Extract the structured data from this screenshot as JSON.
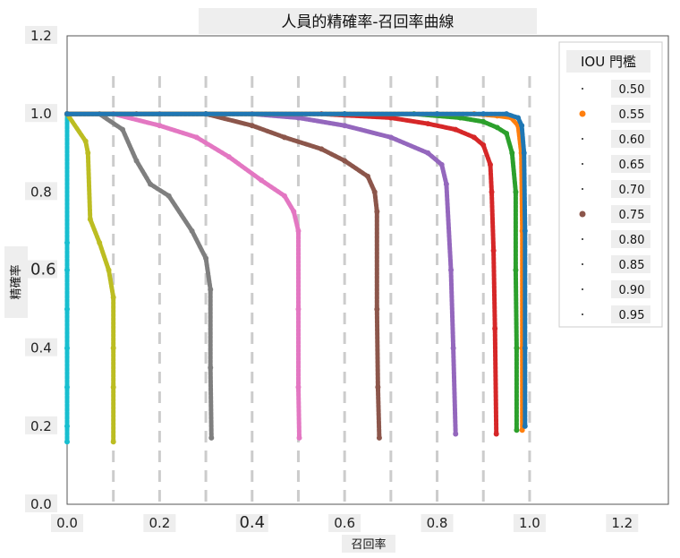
{
  "chart_data": {
    "type": "scatter",
    "title": "人員的精確率-召回率曲線",
    "xlabel": "召回率",
    "ylabel": "精確率",
    "xlim": [
      0.0,
      1.3
    ],
    "ylim": [
      0.0,
      1.2
    ],
    "x_ticks": [
      "0.0",
      "0.2",
      "0.4",
      "0.6",
      "0.8",
      "1.0",
      "1.2"
    ],
    "y_ticks": [
      "0.0",
      "0.2",
      "0.4",
      "0.6",
      "0.8",
      "1.0",
      "1.2"
    ],
    "grid": "vertical dashed lines at every 0.1 of recall",
    "legend": {
      "title": "IOU 門檻",
      "placement": "top-right"
    },
    "series": [
      {
        "name": "0.50",
        "color": "#1f77b4",
        "points": [
          [
            0.0,
            1.0
          ],
          [
            0.3,
            1.0
          ],
          [
            0.6,
            1.0
          ],
          [
            0.8,
            1.0
          ],
          [
            0.9,
            1.0
          ],
          [
            0.95,
            1.0
          ],
          [
            0.975,
            0.99
          ],
          [
            0.983,
            0.97
          ],
          [
            0.988,
            0.9
          ],
          [
            0.99,
            0.7
          ],
          [
            0.99,
            0.4
          ],
          [
            0.99,
            0.2
          ]
        ]
      },
      {
        "name": "0.55",
        "color": "#ff7f0e",
        "points": [
          [
            0.0,
            1.0
          ],
          [
            0.3,
            1.0
          ],
          [
            0.6,
            1.0
          ],
          [
            0.8,
            1.0
          ],
          [
            0.88,
            1.0
          ],
          [
            0.93,
            0.995
          ],
          [
            0.96,
            0.99
          ],
          [
            0.975,
            0.97
          ],
          [
            0.982,
            0.9
          ],
          [
            0.984,
            0.7
          ],
          [
            0.984,
            0.4
          ],
          [
            0.984,
            0.19
          ]
        ]
      },
      {
        "name": "0.60",
        "color": "#2ca02c",
        "points": [
          [
            0.0,
            1.0
          ],
          [
            0.3,
            1.0
          ],
          [
            0.6,
            1.0
          ],
          [
            0.75,
            1.0
          ],
          [
            0.85,
            0.99
          ],
          [
            0.9,
            0.98
          ],
          [
            0.93,
            0.965
          ],
          [
            0.95,
            0.95
          ],
          [
            0.962,
            0.9
          ],
          [
            0.97,
            0.8
          ],
          [
            0.97,
            0.6
          ],
          [
            0.972,
            0.4
          ],
          [
            0.972,
            0.19
          ]
        ]
      },
      {
        "name": "0.65",
        "color": "#d62728",
        "points": [
          [
            0.0,
            1.0
          ],
          [
            0.3,
            1.0
          ],
          [
            0.55,
            1.0
          ],
          [
            0.7,
            0.99
          ],
          [
            0.78,
            0.975
          ],
          [
            0.84,
            0.96
          ],
          [
            0.88,
            0.94
          ],
          [
            0.9,
            0.92
          ],
          [
            0.915,
            0.87
          ],
          [
            0.918,
            0.8
          ],
          [
            0.922,
            0.65
          ],
          [
            0.925,
            0.45
          ],
          [
            0.928,
            0.18
          ]
        ]
      },
      {
        "name": "0.70",
        "color": "#9467bd",
        "points": [
          [
            0.0,
            1.0
          ],
          [
            0.2,
            1.0
          ],
          [
            0.4,
            1.0
          ],
          [
            0.5,
            0.99
          ],
          [
            0.6,
            0.97
          ],
          [
            0.7,
            0.94
          ],
          [
            0.78,
            0.9
          ],
          [
            0.81,
            0.87
          ],
          [
            0.82,
            0.82
          ],
          [
            0.83,
            0.6
          ],
          [
            0.835,
            0.4
          ],
          [
            0.84,
            0.18
          ]
        ]
      },
      {
        "name": "0.75",
        "color": "#8c564b",
        "points": [
          [
            0.0,
            1.0
          ],
          [
            0.15,
            1.0
          ],
          [
            0.3,
            1.0
          ],
          [
            0.4,
            0.97
          ],
          [
            0.47,
            0.94
          ],
          [
            0.55,
            0.91
          ],
          [
            0.6,
            0.88
          ],
          [
            0.65,
            0.84
          ],
          [
            0.665,
            0.8
          ],
          [
            0.67,
            0.75
          ],
          [
            0.67,
            0.5
          ],
          [
            0.672,
            0.3
          ],
          [
            0.675,
            0.17
          ]
        ]
      },
      {
        "name": "0.80",
        "color": "#e377c2",
        "points": [
          [
            0.0,
            1.0
          ],
          [
            0.1,
            1.0
          ],
          [
            0.2,
            0.97
          ],
          [
            0.28,
            0.94
          ],
          [
            0.35,
            0.89
          ],
          [
            0.42,
            0.83
          ],
          [
            0.47,
            0.79
          ],
          [
            0.49,
            0.75
          ],
          [
            0.5,
            0.7
          ],
          [
            0.5,
            0.5
          ],
          [
            0.5,
            0.3
          ],
          [
            0.502,
            0.17
          ]
        ]
      },
      {
        "name": "0.85",
        "color": "#7f7f7f",
        "points": [
          [
            0.0,
            1.0
          ],
          [
            0.07,
            1.0
          ],
          [
            0.12,
            0.96
          ],
          [
            0.15,
            0.88
          ],
          [
            0.18,
            0.82
          ],
          [
            0.22,
            0.79
          ],
          [
            0.27,
            0.7
          ],
          [
            0.3,
            0.63
          ],
          [
            0.31,
            0.55
          ],
          [
            0.31,
            0.35
          ],
          [
            0.312,
            0.17
          ]
        ]
      },
      {
        "name": "0.90",
        "color": "#bcbd22",
        "points": [
          [
            0.0,
            1.0
          ],
          [
            0.04,
            0.93
          ],
          [
            0.045,
            0.9
          ],
          [
            0.05,
            0.73
          ],
          [
            0.07,
            0.67
          ],
          [
            0.09,
            0.6
          ],
          [
            0.1,
            0.53
          ],
          [
            0.1,
            0.4
          ],
          [
            0.1,
            0.3
          ],
          [
            0.1,
            0.16
          ]
        ]
      },
      {
        "name": "0.95",
        "color": "#17becf",
        "points": [
          [
            0.0,
            1.0
          ],
          [
            0.0,
            0.67
          ],
          [
            0.0,
            0.6
          ],
          [
            0.0,
            0.5
          ],
          [
            0.0,
            0.4
          ],
          [
            0.0,
            0.3
          ],
          [
            0.0,
            0.2
          ],
          [
            0.0,
            0.16
          ]
        ]
      }
    ]
  }
}
